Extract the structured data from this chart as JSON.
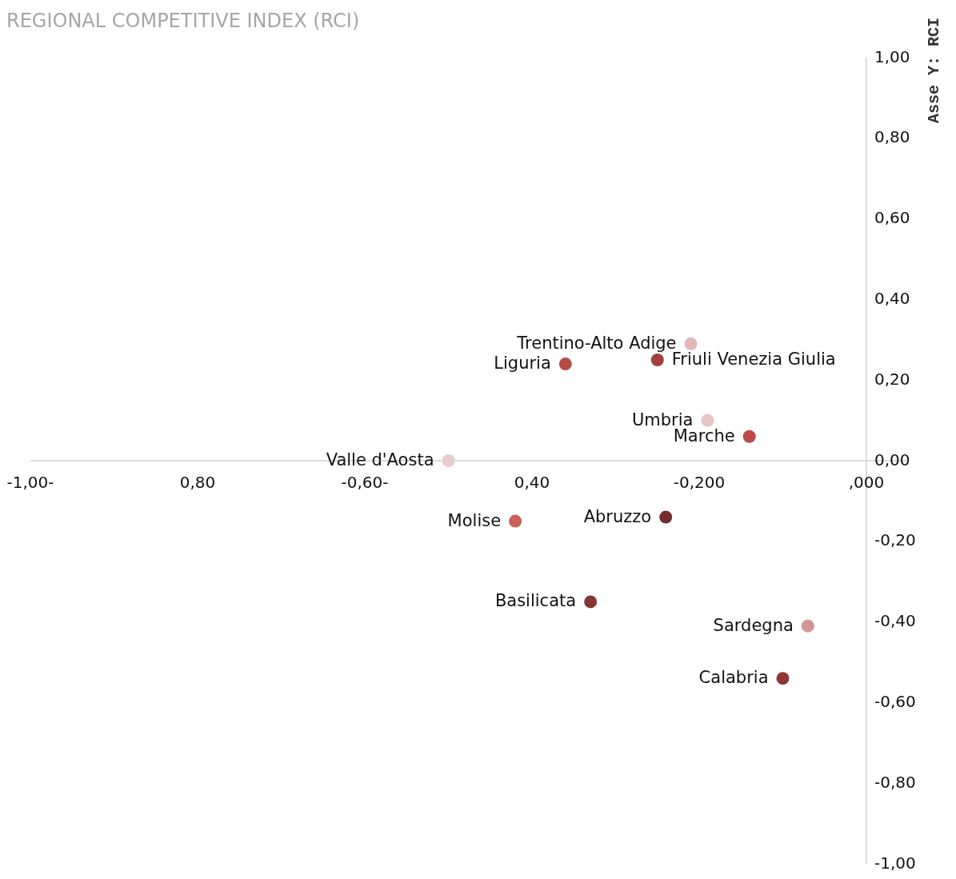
{
  "chart_data": {
    "type": "scatter",
    "title": "REGIONAL COMPETITIVE INDEX (RCI)",
    "ylabel": "Asse Y: RCI",
    "xlim": [
      -1,
      0
    ],
    "ylim": [
      -1,
      1
    ],
    "xticks": [
      {
        "value": -1,
        "label": "-1,00-"
      },
      {
        "value": -0.8,
        "label": "0,80"
      },
      {
        "value": -0.6,
        "label": "-0,60-"
      },
      {
        "value": -0.4,
        "label": "0,40"
      },
      {
        "value": -0.2,
        "label": "-0,200"
      },
      {
        "value": 0,
        "label": ",000"
      }
    ],
    "yticks": [
      {
        "value": 1,
        "label": "1,00"
      },
      {
        "value": 0.8,
        "label": "0,80"
      },
      {
        "value": 0.6,
        "label": "0,60"
      },
      {
        "value": 0.4,
        "label": "0,40"
      },
      {
        "value": 0.2,
        "label": "0,20"
      },
      {
        "value": 0,
        "label": "0,00"
      },
      {
        "value": -0.2,
        "label": "-0,20"
      },
      {
        "value": -0.4,
        "label": "-0,40"
      },
      {
        "value": -0.6,
        "label": "-0,60"
      },
      {
        "value": -0.8,
        "label": "-0,80"
      },
      {
        "value": -1,
        "label": "-1,00"
      }
    ],
    "grid": false,
    "marker": "circle",
    "series": [
      {
        "name": "Trentino-Alto Adige",
        "color": "#e0b8b8",
        "x": [
          -0.21
        ],
        "values": [
          0.29
        ]
      },
      {
        "name": "Friuli Venezia Giulia",
        "color": "#a33f3f",
        "x": [
          -0.25
        ],
        "values": [
          0.25
        ]
      },
      {
        "name": "Liguria",
        "color": "#b54a47",
        "x": [
          -0.36
        ],
        "values": [
          0.24
        ]
      },
      {
        "name": "Umbria",
        "color": "#e5c4c4",
        "x": [
          -0.19
        ],
        "values": [
          0.1
        ]
      },
      {
        "name": "Marche",
        "color": "#c04a48",
        "x": [
          -0.14
        ],
        "values": [
          0.06
        ]
      },
      {
        "name": "Valle d'Aosta",
        "color": "#e8cccc",
        "x": [
          -0.5
        ],
        "values": [
          0
        ]
      },
      {
        "name": "Molise",
        "color": "#c9605c",
        "x": [
          -0.42
        ],
        "values": [
          -0.15
        ]
      },
      {
        "name": "Abruzzo",
        "color": "#742c2e",
        "x": [
          -0.24
        ],
        "values": [
          -0.14
        ]
      },
      {
        "name": "Basilicata",
        "color": "#853537",
        "x": [
          -0.33
        ],
        "values": [
          -0.35
        ]
      },
      {
        "name": "Sardegna",
        "color": "#d49594",
        "x": [
          -0.07
        ],
        "values": [
          -0.41
        ]
      },
      {
        "name": "Calabria",
        "color": "#8e3535",
        "x": [
          -0.1
        ],
        "values": [
          -0.54
        ]
      }
    ]
  }
}
